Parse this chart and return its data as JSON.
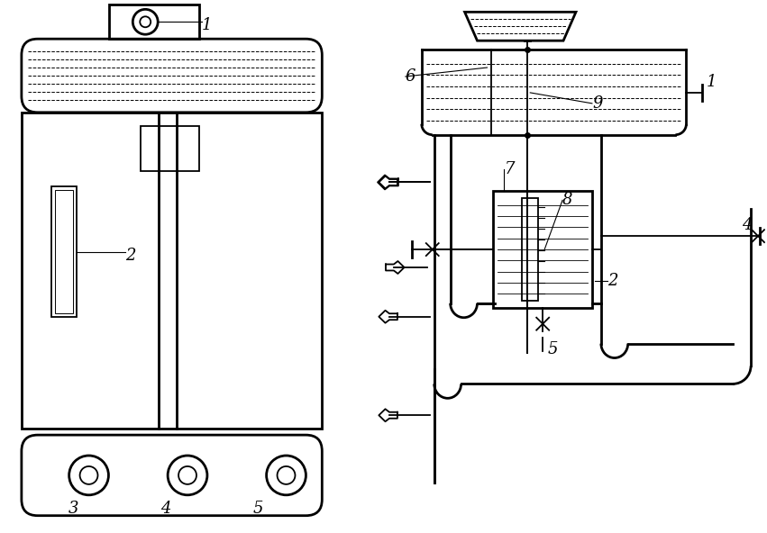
{
  "bg_color": "#ffffff",
  "line_color": "#000000",
  "lw": 1.3,
  "lw2": 2.0,
  "fig_width": 8.51,
  "fig_height": 5.92,
  "dpi": 100
}
